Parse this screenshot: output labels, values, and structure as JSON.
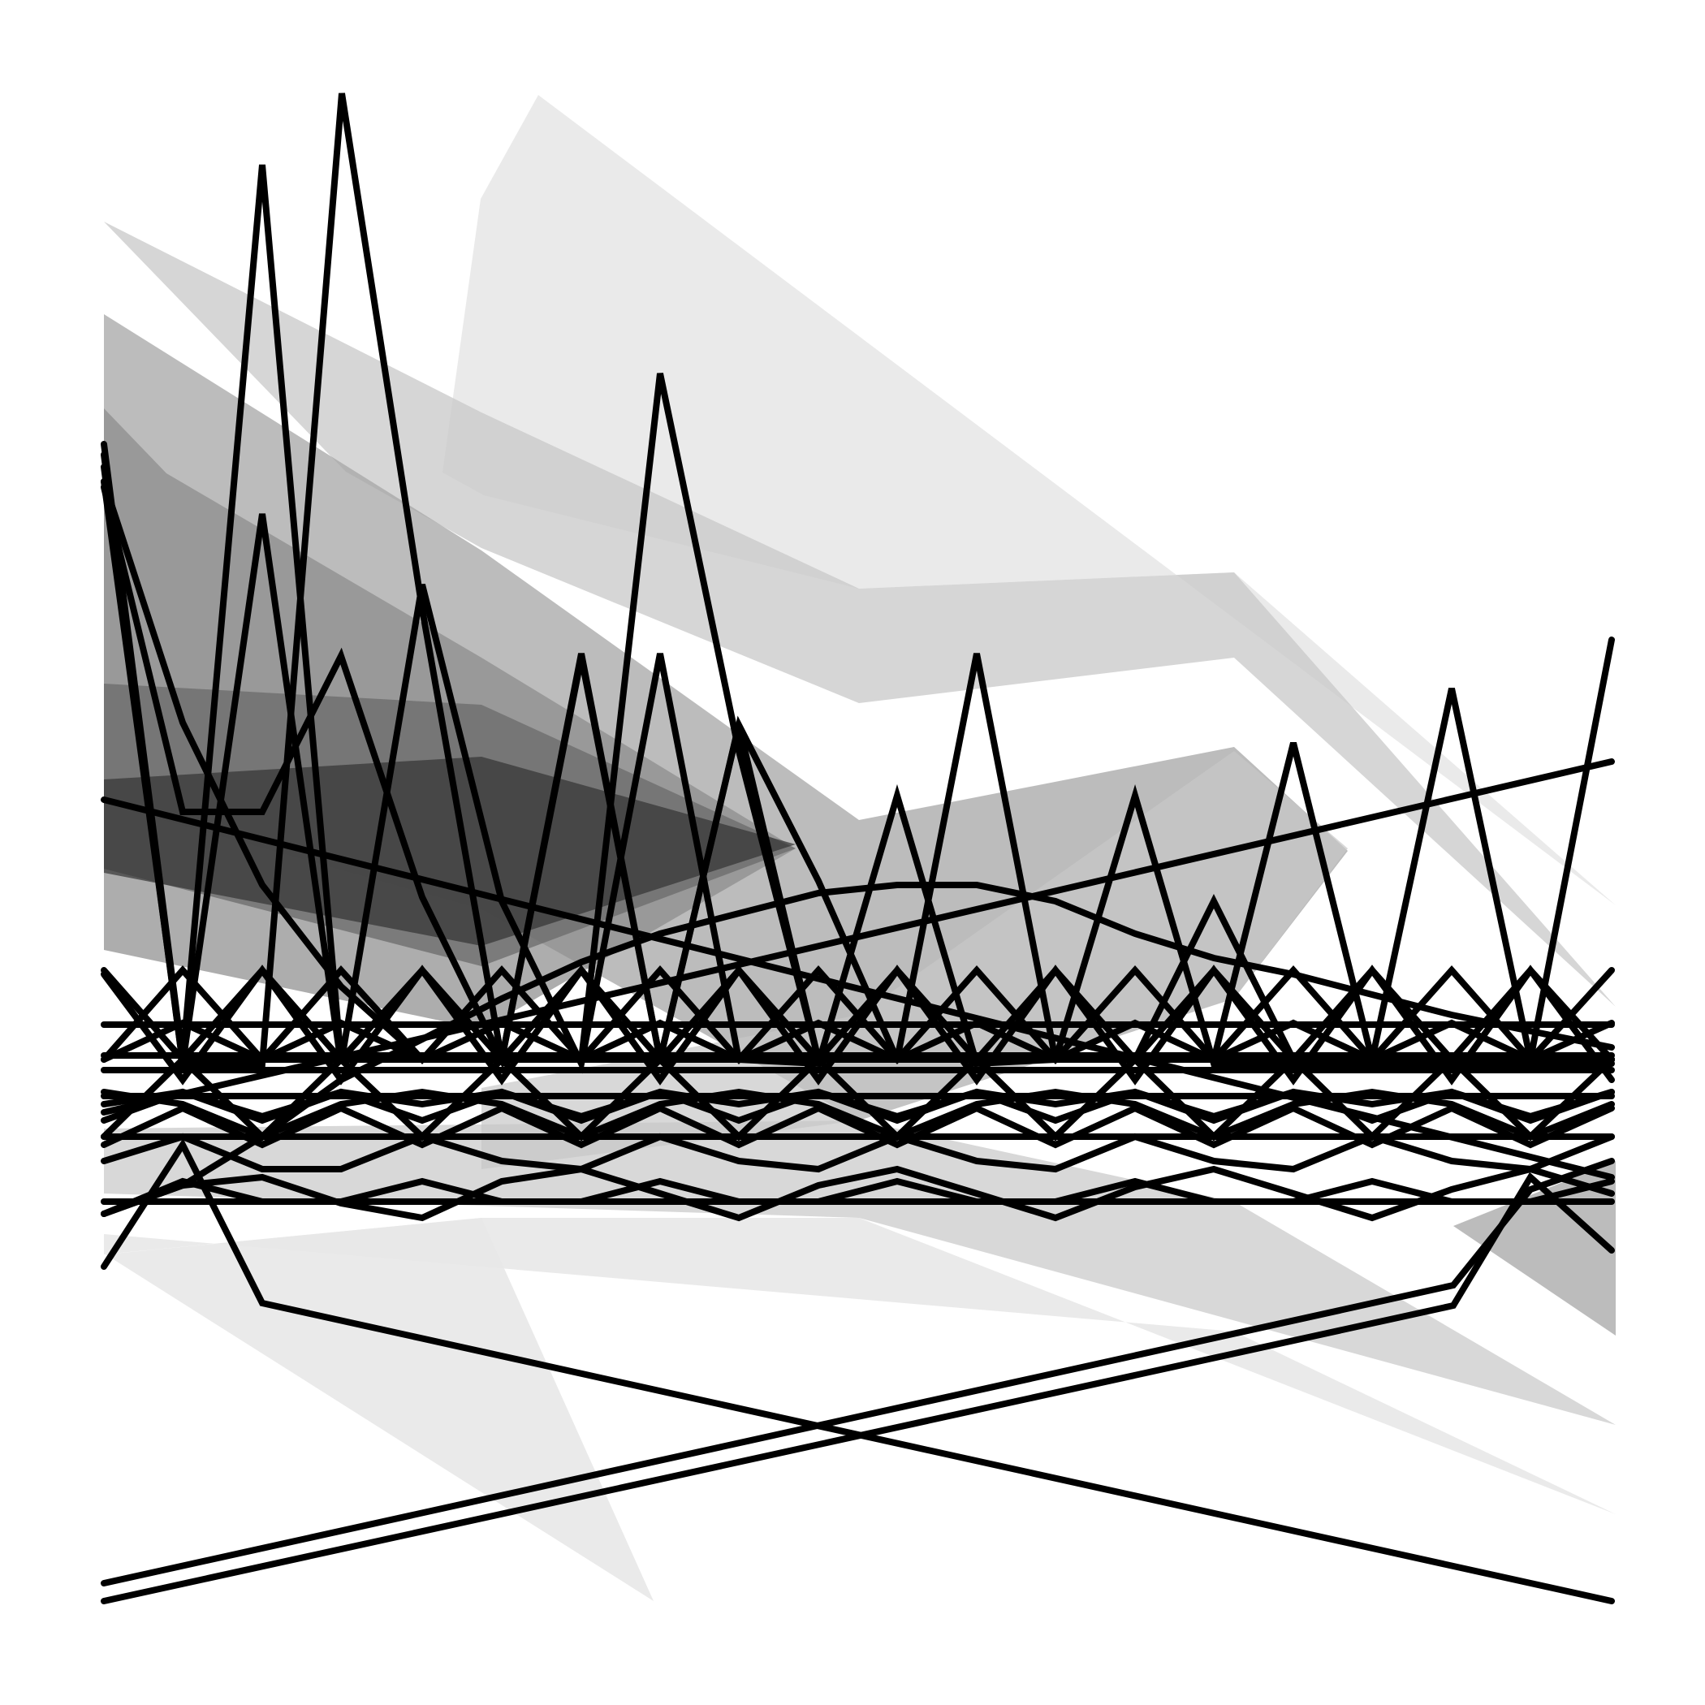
{
  "artwork": {
    "background_color": "#ffffff",
    "stroke_color": "#000000",
    "fill_colors": [
      "#e8e8e8",
      "#c8c8c8",
      "#a6a6a6",
      "#8a8a8a",
      "#6b6b6b",
      "#4d4d4d",
      "#333333"
    ],
    "description_visible_text": ""
  }
}
